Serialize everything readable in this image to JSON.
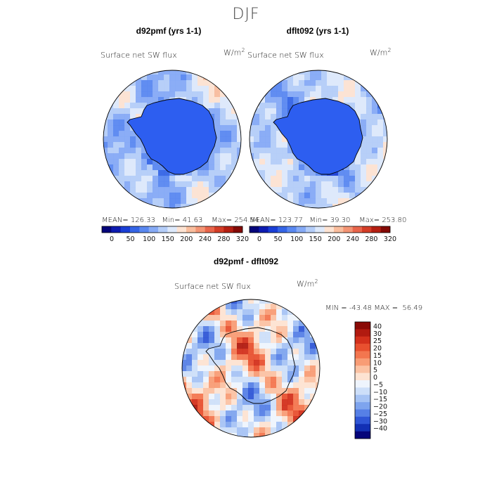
{
  "title": "DJF",
  "chart_data": [
    {
      "type": "heatmap",
      "panel_title": "d92pmf (yrs 1-1)",
      "subtitle": "Surface net SW flux",
      "units_base": "W/m",
      "units_exp": "2",
      "stats": {
        "mean_label": "MEAN=",
        "mean": "126.33",
        "min_label": "Min=",
        "min": "41.63",
        "max_label": "Max=",
        "max": "254.54"
      },
      "colorbar": {
        "ticks": [
          "0",
          "50",
          "100",
          "150",
          "200",
          "240",
          "280",
          "320"
        ],
        "colors": [
          "#05057a",
          "#0d1bb0",
          "#1a3fd6",
          "#3565e6",
          "#5a88f0",
          "#86aaf5",
          "#b4cdf8",
          "#dde9fb",
          "#fde3d2",
          "#f9bd9d",
          "#f39474",
          "#e8654b",
          "#d33d27",
          "#b41f12",
          "#830a06"
        ]
      }
    },
    {
      "type": "heatmap",
      "panel_title": "dflt092 (yrs 1-1)",
      "subtitle": "Surface net SW flux",
      "units_base": "W/m",
      "units_exp": "2",
      "stats": {
        "mean_label": "MEAN=",
        "mean": "123.77",
        "min_label": "Min=",
        "min": "39.30",
        "max_label": "Max=",
        "max": "253.80"
      },
      "colorbar": {
        "ticks": [
          "0",
          "50",
          "100",
          "150",
          "200",
          "240",
          "280",
          "320"
        ],
        "colors": [
          "#05057a",
          "#0d1bb0",
          "#1a3fd6",
          "#3565e6",
          "#5a88f0",
          "#86aaf5",
          "#b4cdf8",
          "#dde9fb",
          "#fde3d2",
          "#f9bd9d",
          "#f39474",
          "#e8654b",
          "#d33d27",
          "#b41f12",
          "#830a06"
        ]
      }
    },
    {
      "type": "heatmap",
      "panel_title": "d92pmf - dflt092",
      "subtitle": "Surface net SW flux",
      "units_base": "W/m",
      "units_exp": "2",
      "stats": {
        "min_label": "MIN =",
        "min": "-43.48",
        "max_label": "MAX =",
        "max": "56.49"
      },
      "colorbar": {
        "ticks": [
          "40",
          "30",
          "25",
          "20",
          "15",
          "10",
          "5",
          "0",
          "−5",
          "−10",
          "−15",
          "−20",
          "−25",
          "−30",
          "−40"
        ],
        "colors": [
          "#8a0a06",
          "#b11a10",
          "#d3301c",
          "#e8502f",
          "#f3764f",
          "#f89c75",
          "#fbc2a3",
          "#fde3d2",
          "#eef4fd",
          "#cddff9",
          "#a6c3f4",
          "#7ea4ee",
          "#5680e6",
          "#2f56d6",
          "#1230b4",
          "#05057a"
        ]
      }
    }
  ]
}
